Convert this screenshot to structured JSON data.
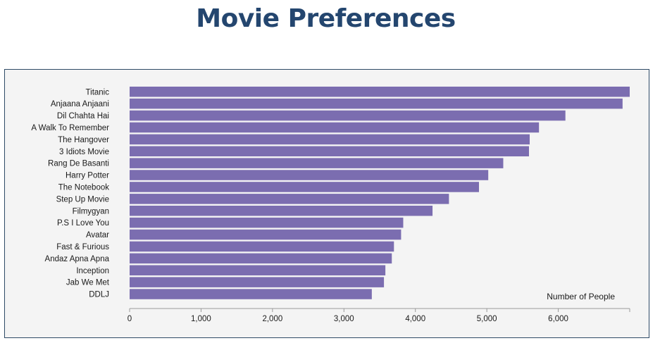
{
  "page": {
    "title": "Movie Preferences"
  },
  "chart_data": {
    "type": "bar",
    "orientation": "horizontal",
    "categories": [
      "Titanic",
      "Anjaana Anjaani",
      "Dil Chahta Hai",
      "A Walk To Remember",
      "The Hangover",
      "3 Idiots Movie",
      "Rang De Basanti",
      "Harry Potter",
      "The Notebook",
      "Step Up Movie",
      "Filmygyan",
      "P.S I Love You",
      "Avatar",
      "Fast & Furious",
      "Andaz Apna Apna",
      "Inception",
      "Jab We Met",
      "DDLJ"
    ],
    "values": [
      7000,
      6900,
      6100,
      5730,
      5600,
      5590,
      5230,
      5020,
      4890,
      4470,
      4240,
      3830,
      3800,
      3700,
      3670,
      3580,
      3560,
      3390
    ],
    "xlabel": "Number of People",
    "xlim": [
      0,
      7000
    ],
    "xticks": [
      0,
      1000,
      2000,
      3000,
      4000,
      5000,
      6000
    ],
    "xtick_labels": [
      "0",
      "1,000",
      "2,000",
      "3,000",
      "4,000",
      "5,000",
      "6,000"
    ],
    "bar_color": "#7b6db0",
    "grid": false
  }
}
